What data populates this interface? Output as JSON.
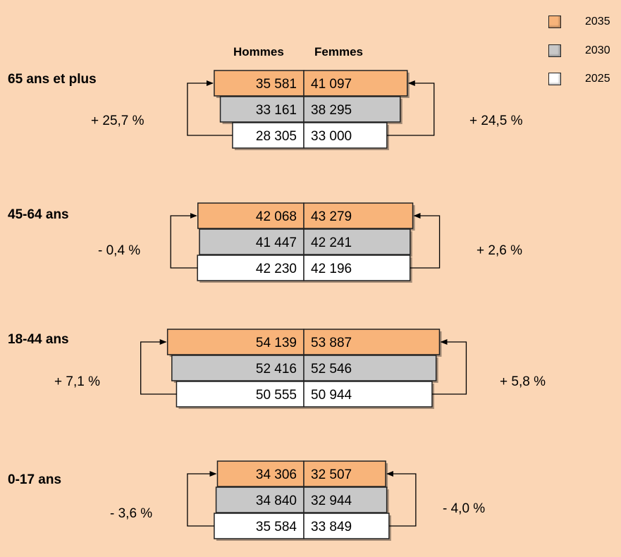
{
  "colors": {
    "y2035": "#F8B47A",
    "y2030": "#C8C8C8",
    "y2025": "#FFFFFF",
    "background": "#FBD6B5"
  },
  "legend": [
    {
      "year": "2035",
      "color": "#F8B47A"
    },
    {
      "year": "2030",
      "color": "#C8C8C8"
    },
    {
      "year": "2025",
      "color": "#FFFFFF"
    }
  ],
  "headers": {
    "men": "Hommes",
    "women": "Femmes"
  },
  "chart_data": {
    "type": "bar",
    "years": [
      "2035",
      "2030",
      "2025"
    ],
    "groups": [
      {
        "label": "65 ans et plus",
        "men": {
          "2035": 35581,
          "2030": 33161,
          "2025": 28305
        },
        "women": {
          "2035": 41097,
          "2030": 38295,
          "2025": 33000
        },
        "men_text": {
          "2035": "35 581",
          "2030": "33 161",
          "2025": "28 305"
        },
        "women_text": {
          "2035": "41 097",
          "2030": "38 295",
          "2025": "33 000"
        },
        "men_change": "+ 25,7 %",
        "women_change": "+ 24,5 %"
      },
      {
        "label": "45-64 ans",
        "men": {
          "2035": 42068,
          "2030": 41447,
          "2025": 42230
        },
        "women": {
          "2035": 43279,
          "2030": 42241,
          "2025": 42196
        },
        "men_text": {
          "2035": "42 068",
          "2030": "41 447",
          "2025": "42 230"
        },
        "women_text": {
          "2035": "43 279",
          "2030": "42 241",
          "2025": "42 196"
        },
        "men_change": "- 0,4 %",
        "women_change": "+ 2,6 %"
      },
      {
        "label": "18-44 ans",
        "men": {
          "2035": 54139,
          "2030": 52416,
          "2025": 50555
        },
        "women": {
          "2035": 53887,
          "2030": 52546,
          "2025": 50944
        },
        "men_text": {
          "2035": "54 139",
          "2030": "52 416",
          "2025": "50 555"
        },
        "women_text": {
          "2035": "53 887",
          "2030": "52 546",
          "2025": "50 944"
        },
        "men_change": "+ 7,1 %",
        "women_change": "+ 5,8 %"
      },
      {
        "label": "0-17 ans",
        "men": {
          "2035": 34306,
          "2030": 34840,
          "2025": 35584
        },
        "women": {
          "2035": 32507,
          "2030": 32944,
          "2025": 33849
        },
        "men_text": {
          "2035": "34 306",
          "2030": "34 840",
          "2025": "35 584"
        },
        "women_text": {
          "2035": "32 507",
          "2030": "32 944",
          "2025": "33 849"
        },
        "men_change": "- 3,6 %",
        "women_change": "- 4,0 %"
      }
    ]
  }
}
